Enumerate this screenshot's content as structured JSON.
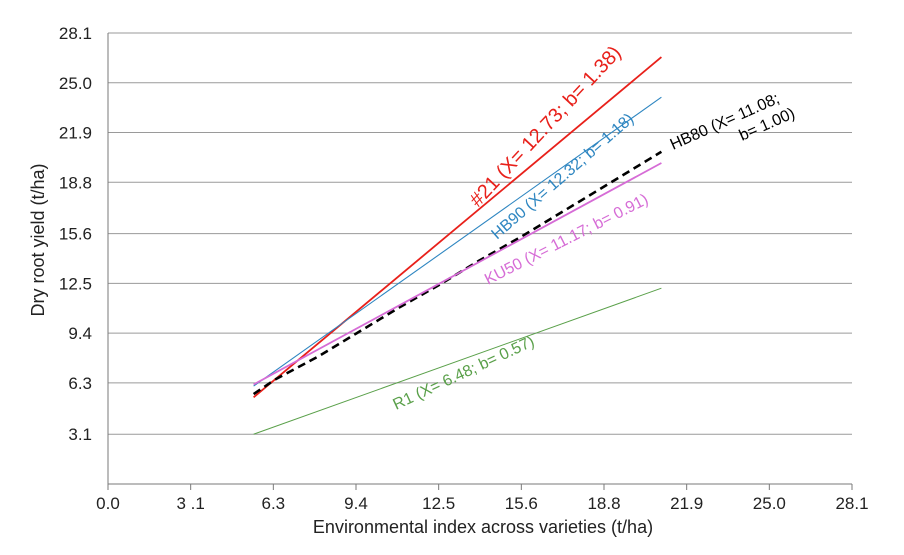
{
  "chart_data": {
    "type": "line",
    "title": "",
    "xlabel": "Environmental index across varieties (t/ha)",
    "ylabel": "Dry root yield (t/ha)",
    "xlim": [
      0,
      28.1
    ],
    "ylim": [
      0,
      28.1
    ],
    "x_tick_labels": [
      "0.0",
      "3 .1",
      "6.3",
      "9.4",
      "12.5",
      "15.6",
      "18.8",
      "21.9",
      "25.0",
      "28.1"
    ],
    "y_tick_labels": [
      "3.1",
      "6.3",
      "9.4",
      "12.5",
      "15.6",
      "18.8",
      "21.9",
      "25.0",
      "28.1"
    ],
    "grid": "horizontal",
    "series": [
      {
        "name": "#21 (X= 12.73; b= 1.38)",
        "color": "#e8201a",
        "dash": false,
        "x": [
          5.5,
          20.9
        ],
        "y": [
          5.4,
          26.6
        ]
      },
      {
        "name": "HB90 (X= 12.32; b= 1.18)",
        "color": "#2e86c1",
        "dash": false,
        "x": [
          5.5,
          20.9
        ],
        "y": [
          6.1,
          24.1
        ]
      },
      {
        "name": "HB80 (X= 11.08; b= 1.00)",
        "color": "#000000",
        "dash": true,
        "x": [
          5.5,
          6.3,
          8.0,
          9.4,
          11.0,
          12.5,
          14.0,
          15.6,
          17.2,
          18.8,
          20.4,
          20.9
        ],
        "y": [
          5.6,
          6.5,
          8.0,
          9.4,
          11.0,
          12.4,
          13.9,
          15.4,
          17.0,
          18.6,
          20.2,
          20.7
        ]
      },
      {
        "name": "KU50 (X= 11.17; b= 0.91)",
        "color": "#d66cd6",
        "dash": false,
        "x": [
          5.5,
          20.9
        ],
        "y": [
          6.2,
          20.0
        ]
      },
      {
        "name": "R1 (X= 6.48; b= 0.57)",
        "color": "#5aa04a",
        "dash": false,
        "x": [
          5.5,
          20.9
        ],
        "y": [
          3.1,
          12.2
        ]
      }
    ]
  }
}
